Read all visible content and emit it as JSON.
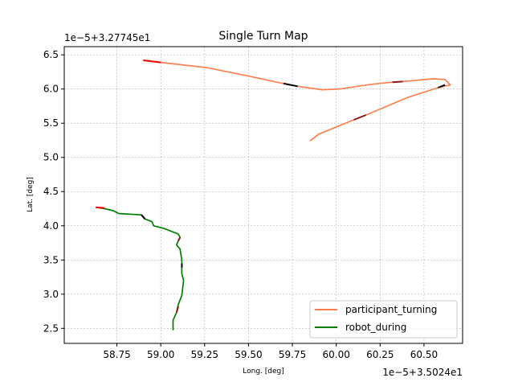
{
  "chart_data": {
    "type": "line",
    "title": "Single Turn Map",
    "xlabel": "Long. [deg]",
    "ylabel": "Lat. [deg]",
    "x_offset_text": "1e−5+3.5024e1",
    "y_offset_text": "1e−5+3.27745e1",
    "xlim": [
      58.45,
      60.72
    ],
    "ylim": [
      2.28,
      6.62
    ],
    "xticks": [
      58.75,
      59.0,
      59.25,
      59.5,
      59.75,
      60.0,
      60.25,
      60.5
    ],
    "xtick_labels": [
      "58.75",
      "59.00",
      "59.25",
      "59.50",
      "59.75",
      "60.00",
      "60.25",
      "60.50"
    ],
    "yticks": [
      2.5,
      3.0,
      3.5,
      4.0,
      4.5,
      5.0,
      5.5,
      6.0,
      6.5
    ],
    "ytick_labels": [
      "2.5",
      "3.0",
      "3.5",
      "4.0",
      "4.5",
      "5.0",
      "5.5",
      "6.0",
      "6.5"
    ],
    "grid": true,
    "legend_position": "lower-right",
    "series": [
      {
        "name": "participant_turning",
        "color": "#ff7f50",
        "points": [
          [
            58.9,
            6.42
          ],
          [
            59.0,
            6.39
          ],
          [
            59.27,
            6.31
          ],
          [
            59.5,
            6.19
          ],
          [
            59.7,
            6.08
          ],
          [
            59.78,
            6.04
          ],
          [
            59.92,
            5.99
          ],
          [
            60.02,
            6.0
          ],
          [
            60.2,
            6.07
          ],
          [
            60.32,
            6.1
          ],
          [
            60.38,
            6.11
          ],
          [
            60.55,
            6.15
          ],
          [
            60.62,
            6.14
          ],
          [
            60.65,
            6.06
          ],
          [
            60.58,
            6.02
          ],
          [
            60.41,
            5.88
          ],
          [
            60.17,
            5.62
          ],
          [
            60.1,
            5.55
          ],
          [
            59.9,
            5.34
          ],
          [
            59.85,
            5.24
          ]
        ]
      },
      {
        "name": "robot_during",
        "color": "#008000",
        "points": [
          [
            58.63,
            4.27
          ],
          [
            58.68,
            4.25
          ],
          [
            58.73,
            4.22
          ],
          [
            58.76,
            4.18
          ],
          [
            58.89,
            4.16
          ],
          [
            58.91,
            4.1
          ],
          [
            58.95,
            4.06
          ],
          [
            58.96,
            4.0
          ],
          [
            59.02,
            3.96
          ],
          [
            59.08,
            3.9
          ],
          [
            59.1,
            3.88
          ],
          [
            59.11,
            3.83
          ],
          [
            59.1,
            3.78
          ],
          [
            59.09,
            3.72
          ],
          [
            59.11,
            3.66
          ],
          [
            59.12,
            3.5
          ],
          [
            59.12,
            3.4
          ],
          [
            59.12,
            3.3
          ],
          [
            59.13,
            3.2
          ],
          [
            59.12,
            2.98
          ],
          [
            59.1,
            2.85
          ],
          [
            59.09,
            2.73
          ],
          [
            59.07,
            2.62
          ],
          [
            59.07,
            2.47
          ]
        ]
      }
    ],
    "highlights": [
      {
        "color": "#ff0000",
        "points": [
          [
            58.9,
            6.42
          ],
          [
            59.0,
            6.39
          ]
        ]
      },
      {
        "color": "#000000",
        "points": [
          [
            59.7,
            6.08
          ],
          [
            59.78,
            6.04
          ]
        ]
      },
      {
        "color": "#8b1a1a",
        "points": [
          [
            60.32,
            6.1
          ],
          [
            60.38,
            6.11
          ]
        ]
      },
      {
        "color": "#000000",
        "points": [
          [
            60.62,
            6.06
          ],
          [
            60.58,
            6.02
          ]
        ]
      },
      {
        "color": "#8b1a1a",
        "points": [
          [
            60.17,
            5.62
          ],
          [
            60.1,
            5.55
          ]
        ]
      },
      {
        "color": "#ff0000",
        "points": [
          [
            58.63,
            4.27
          ],
          [
            58.68,
            4.26
          ]
        ]
      },
      {
        "color": "#000000",
        "points": [
          [
            58.89,
            4.16
          ],
          [
            58.91,
            4.1
          ]
        ]
      },
      {
        "color": "#8b1a1a",
        "points": [
          [
            59.11,
            3.83
          ],
          [
            59.1,
            3.78
          ]
        ]
      },
      {
        "color": "#000000",
        "points": [
          [
            59.12,
            3.45
          ],
          [
            59.12,
            3.39
          ]
        ]
      },
      {
        "color": "#8b1a1a",
        "points": [
          [
            59.1,
            2.82
          ],
          [
            59.09,
            2.73
          ]
        ]
      }
    ]
  }
}
